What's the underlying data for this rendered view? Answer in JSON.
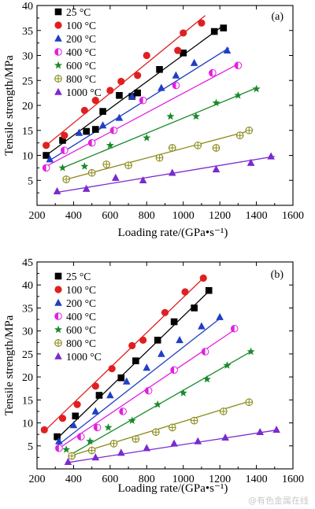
{
  "watermark": "@有色金属在线",
  "chart_data": [
    {
      "type": "scatter",
      "panel_label": "(a)",
      "xlabel": "Loading rate/(GPa•s⁻¹)",
      "ylabel": "Tensile strength/MPa",
      "xlim": [
        200,
        1600
      ],
      "ylim": [
        0,
        40
      ],
      "xticks": [
        200,
        400,
        600,
        800,
        1000,
        1200,
        1400,
        1600
      ],
      "yticks": [
        5,
        10,
        15,
        20,
        25,
        30,
        35,
        40
      ],
      "trendlines": true,
      "legend_position": "top-left",
      "series": [
        {
          "name": "25 °C",
          "color": "#000000",
          "marker": "square",
          "points": [
            [
              250,
              10.0
            ],
            [
              340,
              13.0
            ],
            [
              470,
              14.8
            ],
            [
              520,
              15.2
            ],
            [
              560,
              18.8
            ],
            [
              650,
              22.0
            ],
            [
              720,
              21.8
            ],
            [
              750,
              22.5
            ],
            [
              870,
              27.2
            ],
            [
              1000,
              30.5
            ],
            [
              1170,
              34.8
            ],
            [
              1220,
              35.5
            ]
          ],
          "fit": [
            [
              250,
              10.0
            ],
            [
              1220,
              36.0
            ]
          ]
        },
        {
          "name": "100 °C",
          "color": "#e02020",
          "marker": "circle",
          "points": [
            [
              250,
              12.0
            ],
            [
              350,
              14.0
            ],
            [
              460,
              19.0
            ],
            [
              520,
              21.0
            ],
            [
              600,
              23.0
            ],
            [
              660,
              24.8
            ],
            [
              750,
              26.0
            ],
            [
              800,
              30.0
            ],
            [
              970,
              31.0
            ],
            [
              1000,
              34.5
            ],
            [
              1100,
              36.5
            ]
          ],
          "fit": [
            [
              250,
              12.0
            ],
            [
              1120,
              38.0
            ]
          ]
        },
        {
          "name": "200 °C",
          "color": "#1f3fc4",
          "marker": "triangle-up",
          "points": [
            [
              270,
              9.2
            ],
            [
              430,
              14.5
            ],
            [
              560,
              16.0
            ],
            [
              650,
              17.5
            ],
            [
              720,
              21.8
            ],
            [
              880,
              23.5
            ],
            [
              960,
              26.0
            ],
            [
              1060,
              28.5
            ],
            [
              1240,
              31.0
            ]
          ],
          "fit": [
            [
              270,
              9.0
            ],
            [
              1250,
              31.5
            ]
          ]
        },
        {
          "name": "400 °C",
          "color": "#e020e0",
          "marker": "half-circle",
          "points": [
            [
              250,
              7.5
            ],
            [
              350,
              11.0
            ],
            [
              500,
              12.5
            ],
            [
              620,
              15.0
            ],
            [
              780,
              21.0
            ],
            [
              960,
              24.0
            ],
            [
              1160,
              26.5
            ],
            [
              1300,
              28.0
            ]
          ],
          "fit": [
            [
              250,
              7.8
            ],
            [
              1310,
              28.5
            ]
          ]
        },
        {
          "name": "600 °C",
          "color": "#1a8a2a",
          "marker": "star",
          "points": [
            [
              340,
              7.5
            ],
            [
              460,
              7.8
            ],
            [
              600,
              12.0
            ],
            [
              800,
              13.5
            ],
            [
              930,
              17.8
            ],
            [
              1070,
              17.8
            ],
            [
              1180,
              20.5
            ],
            [
              1300,
              22.0
            ],
            [
              1400,
              23.3
            ]
          ],
          "fit": [
            [
              340,
              7.5
            ],
            [
              1400,
              23.5
            ]
          ]
        },
        {
          "name": "800 °C",
          "color": "#8a8a1a",
          "marker": "crossed-circle",
          "points": [
            [
              360,
              5.2
            ],
            [
              500,
              6.5
            ],
            [
              580,
              8.2
            ],
            [
              700,
              8.0
            ],
            [
              870,
              9.5
            ],
            [
              940,
              11.5
            ],
            [
              1080,
              12.0
            ],
            [
              1180,
              11.5
            ],
            [
              1310,
              14.0
            ],
            [
              1360,
              15.0
            ]
          ],
          "fit": [
            [
              360,
              5.2
            ],
            [
              1370,
              15.0
            ]
          ]
        },
        {
          "name": "1000 °C",
          "color": "#7a2ad0",
          "marker": "triangle-up",
          "points": [
            [
              310,
              2.8
            ],
            [
              470,
              3.3
            ],
            [
              630,
              5.5
            ],
            [
              780,
              5.0
            ],
            [
              940,
              6.5
            ],
            [
              1180,
              7.2
            ],
            [
              1370,
              8.5
            ],
            [
              1480,
              9.8
            ]
          ],
          "fit": [
            [
              310,
              2.6
            ],
            [
              1500,
              9.8
            ]
          ]
        }
      ]
    },
    {
      "type": "scatter",
      "panel_label": "(b)",
      "xlabel": "Loading rate/(GPa•s⁻¹)",
      "ylabel": "Tensile strength/MPa",
      "xlim": [
        200,
        1600
      ],
      "ylim": [
        0,
        45
      ],
      "xticks": [
        200,
        400,
        600,
        800,
        1000,
        1200,
        1400,
        1600
      ],
      "yticks": [
        5,
        10,
        15,
        20,
        25,
        30,
        35,
        40,
        45
      ],
      "trendlines": true,
      "legend_position": "top-left",
      "series": [
        {
          "name": "25 °C",
          "color": "#000000",
          "marker": "square",
          "points": [
            [
              310,
              7.0
            ],
            [
              410,
              11.5
            ],
            [
              540,
              16.0
            ],
            [
              660,
              19.8
            ],
            [
              740,
              23.5
            ],
            [
              860,
              28.0
            ],
            [
              950,
              32.0
            ],
            [
              1060,
              35.0
            ],
            [
              1140,
              38.8
            ]
          ],
          "fit": [
            [
              300,
              6.2
            ],
            [
              1150,
              39.0
            ]
          ]
        },
        {
          "name": "100 °C",
          "color": "#e02020",
          "marker": "circle",
          "points": [
            [
              240,
              8.5
            ],
            [
              340,
              11.0
            ],
            [
              420,
              14.0
            ],
            [
              520,
              18.0
            ],
            [
              610,
              21.8
            ],
            [
              720,
              26.8
            ],
            [
              780,
              28.0
            ],
            [
              900,
              34.0
            ],
            [
              1010,
              38.5
            ],
            [
              1110,
              41.5
            ]
          ],
          "fit": [
            [
              240,
              8.2
            ],
            [
              1110,
              41.5
            ]
          ]
        },
        {
          "name": "200 °C",
          "color": "#1f3fc4",
          "marker": "triangle-up",
          "points": [
            [
              320,
              6.0
            ],
            [
              400,
              9.5
            ],
            [
              520,
              12.5
            ],
            [
              600,
              16.0
            ],
            [
              690,
              19.0
            ],
            [
              800,
              22.0
            ],
            [
              880,
              25.0
            ],
            [
              980,
              28.0
            ],
            [
              1100,
              31.0
            ],
            [
              1200,
              33.0
            ]
          ],
          "fit": [
            [
              310,
              5.0
            ],
            [
              1210,
              33.0
            ]
          ]
        },
        {
          "name": "400 °C",
          "color": "#e020e0",
          "marker": "half-circle",
          "points": [
            [
              320,
              4.5
            ],
            [
              440,
              7.0
            ],
            [
              530,
              9.0
            ],
            [
              670,
              12.5
            ],
            [
              810,
              17.0
            ],
            [
              950,
              21.5
            ],
            [
              1120,
              25.5
            ],
            [
              1280,
              30.5
            ]
          ],
          "fit": [
            [
              310,
              4.2
            ],
            [
              1290,
              30.5
            ]
          ]
        },
        {
          "name": "600 °C",
          "color": "#1a8a2a",
          "marker": "star",
          "points": [
            [
              360,
              4.2
            ],
            [
              490,
              6.0
            ],
            [
              590,
              9.0
            ],
            [
              720,
              10.5
            ],
            [
              860,
              14.0
            ],
            [
              1000,
              16.5
            ],
            [
              1130,
              19.5
            ],
            [
              1240,
              22.5
            ],
            [
              1370,
              25.5
            ]
          ],
          "fit": [
            [
              380,
              3.0
            ],
            [
              1370,
              25.5
            ]
          ]
        },
        {
          "name": "800 °C",
          "color": "#8a8a1a",
          "marker": "crossed-circle",
          "points": [
            [
              390,
              2.8
            ],
            [
              500,
              4.0
            ],
            [
              620,
              5.5
            ],
            [
              740,
              6.5
            ],
            [
              850,
              8.0
            ],
            [
              940,
              9.0
            ],
            [
              1060,
              10.5
            ],
            [
              1220,
              12.5
            ],
            [
              1360,
              14.5
            ]
          ],
          "fit": [
            [
              380,
              2.8
            ],
            [
              1370,
              14.8
            ]
          ]
        },
        {
          "name": "1000 °C",
          "color": "#7a2ad0",
          "marker": "triangle-up",
          "points": [
            [
              370,
              1.5
            ],
            [
              520,
              2.5
            ],
            [
              660,
              3.5
            ],
            [
              800,
              4.5
            ],
            [
              950,
              5.5
            ],
            [
              1080,
              6.0
            ],
            [
              1230,
              6.8
            ],
            [
              1420,
              8.0
            ],
            [
              1510,
              8.5
            ]
          ],
          "fit": [
            [
              370,
              1.4
            ],
            [
              1520,
              8.5
            ]
          ]
        }
      ]
    }
  ]
}
